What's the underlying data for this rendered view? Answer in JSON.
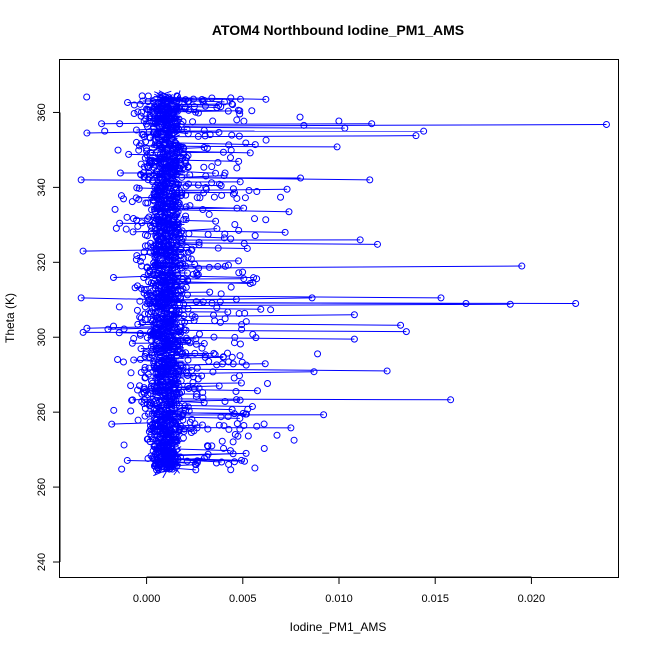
{
  "chart_data": {
    "type": "scatter",
    "style": "points-and-lines",
    "title": "ATOM4 Northbound Iodine_PM1_AMS",
    "xlabel": "Iodine_PM1_AMS",
    "ylabel": "Theta (K)",
    "xlim": [
      -0.0045,
      0.0245
    ],
    "ylim": [
      236,
      374
    ],
    "xticks": [
      0.0,
      0.005,
      0.01,
      0.015,
      0.02
    ],
    "xtick_labels": [
      "0.000",
      "0.005",
      "0.010",
      "0.015",
      "0.020"
    ],
    "yticks": [
      240,
      260,
      280,
      300,
      320,
      340,
      360
    ],
    "ytick_labels": [
      "240",
      "260",
      "280",
      "300",
      "320",
      "340",
      "360"
    ],
    "grid": false,
    "series_color": "#0000ff",
    "outliers": [
      {
        "x": 0.0239,
        "y": 356.8
      },
      {
        "x": 0.0223,
        "y": 309.0
      },
      {
        "x": 0.0195,
        "y": 319.0
      },
      {
        "x": 0.0189,
        "y": 308.8
      },
      {
        "x": 0.0166,
        "y": 309.0
      },
      {
        "x": 0.0158,
        "y": 283.3
      },
      {
        "x": 0.0153,
        "y": 310.5
      },
      {
        "x": 0.0144,
        "y": 355.0
      },
      {
        "x": 0.014,
        "y": 353.8
      },
      {
        "x": 0.0135,
        "y": 301.5
      },
      {
        "x": 0.0132,
        "y": 303.2
      },
      {
        "x": 0.0125,
        "y": 291.0
      },
      {
        "x": 0.012,
        "y": 324.8
      },
      {
        "x": 0.0117,
        "y": 357.0
      },
      {
        "x": 0.0116,
        "y": 342.0
      },
      {
        "x": 0.0111,
        "y": 326.0
      },
      {
        "x": 0.0108,
        "y": 306.0
      },
      {
        "x": 0.0108,
        "y": 299.5
      },
      {
        "x": 0.0103,
        "y": 355.8
      },
      {
        "x": 0.0099,
        "y": 350.8
      },
      {
        "x": 0.0092,
        "y": 279.3
      },
      {
        "x": 0.0087,
        "y": 290.8
      },
      {
        "x": 0.0086,
        "y": 310.5
      },
      {
        "x": 0.008,
        "y": 342.5
      },
      {
        "x": 0.0075,
        "y": 275.8
      },
      {
        "x": 0.0074,
        "y": 333.5
      },
      {
        "x": 0.0073,
        "y": 339.5
      },
      {
        "x": 0.0072,
        "y": 328.0
      },
      {
        "x": 0.0062,
        "y": 363.5
      },
      {
        "x": 0.0055,
        "y": 281.5
      },
      {
        "x": -0.0033,
        "y": 301.3
      },
      {
        "x": -0.0034,
        "y": 342.0
      },
      {
        "x": -0.0034,
        "y": 310.5
      },
      {
        "x": -0.0033,
        "y": 323.0
      },
      {
        "x": -0.0031,
        "y": 354.5
      },
      {
        "x": -0.0031,
        "y": 302.4
      }
    ]
  }
}
